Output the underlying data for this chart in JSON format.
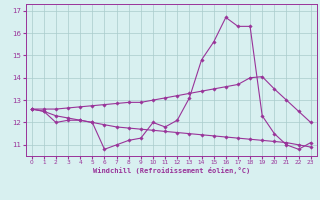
{
  "xlabel": "Windchill (Refroidissement éolien,°C)",
  "x": [
    0,
    1,
    2,
    3,
    4,
    5,
    6,
    7,
    8,
    9,
    10,
    11,
    12,
    13,
    14,
    15,
    16,
    17,
    18,
    19,
    20,
    21,
    22,
    23
  ],
  "line_jagged": [
    12.6,
    12.5,
    12.0,
    12.1,
    12.1,
    12.0,
    10.8,
    11.0,
    11.2,
    11.3,
    12.0,
    11.8,
    12.1,
    13.1,
    14.8,
    15.6,
    16.7,
    16.3,
    16.3,
    12.3,
    11.5,
    11.0,
    10.8,
    11.1
  ],
  "line_rising": [
    12.6,
    12.6,
    12.6,
    12.65,
    12.7,
    12.75,
    12.8,
    12.85,
    12.9,
    12.9,
    13.0,
    13.1,
    13.2,
    13.3,
    13.4,
    13.5,
    13.6,
    13.7,
    14.0,
    14.05,
    13.5,
    13.0,
    12.5,
    12.0
  ],
  "line_falling": [
    12.6,
    12.5,
    12.3,
    12.2,
    12.1,
    12.0,
    11.9,
    11.8,
    11.75,
    11.7,
    11.65,
    11.6,
    11.55,
    11.5,
    11.45,
    11.4,
    11.35,
    11.3,
    11.25,
    11.2,
    11.15,
    11.1,
    11.0,
    10.9
  ],
  "line_color": "#993399",
  "bg_color": "#d8f0f0",
  "grid_color": "#aacccc",
  "ylim": [
    10.5,
    17.3
  ],
  "yticks": [
    11,
    12,
    13,
    14,
    15,
    16,
    17
  ],
  "xticks": [
    0,
    1,
    2,
    3,
    4,
    5,
    6,
    7,
    8,
    9,
    10,
    11,
    12,
    13,
    14,
    15,
    16,
    17,
    18,
    19,
    20,
    21,
    22,
    23
  ]
}
